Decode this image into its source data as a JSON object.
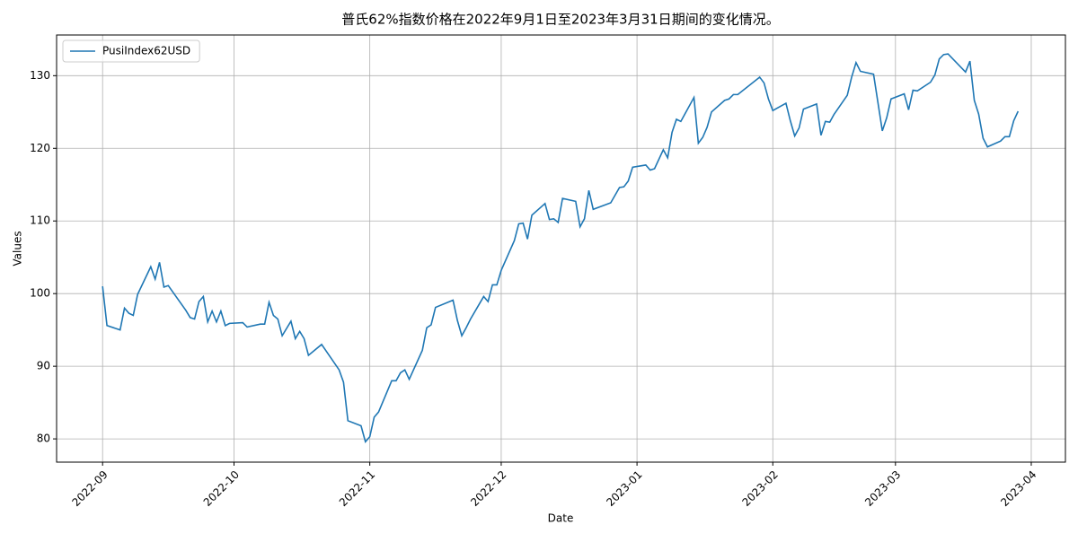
{
  "chart_data": {
    "type": "line",
    "title": "普氏62%指数价格在2022年9月1日至2023年3月31日期间的变化情况。",
    "x_label": "Date",
    "y_label": "Values",
    "x": [
      19236,
      19237,
      19240,
      19241,
      19242,
      19243,
      19244,
      19247,
      19248,
      19249,
      19250,
      19251,
      19255,
      19256,
      19257,
      19258,
      19259,
      19260,
      19261,
      19262,
      19263,
      19264,
      19265,
      19268,
      19269,
      19272,
      19273,
      19274,
      19275,
      19276,
      19277,
      19279,
      19280,
      19281,
      19282,
      19283,
      19286,
      19290,
      19291,
      19292,
      19295,
      19296,
      19297,
      19298,
      19299,
      19302,
      19303,
      19304,
      19305,
      19306,
      19309,
      19310,
      19311,
      19312,
      19316,
      19317,
      19318,
      19319,
      19320,
      19323,
      19324,
      19325,
      19326,
      19327,
      19330,
      19331,
      19332,
      19333,
      19334,
      19337,
      19338,
      19339,
      19340,
      19341,
      19344,
      19345,
      19346,
      19347,
      19348,
      19352,
      19354,
      19355,
      19356,
      19357,
      19360,
      19361,
      19362,
      19364,
      19365,
      19366,
      19367,
      19368,
      19371,
      19372,
      19373,
      19374,
      19375,
      19378,
      19379,
      19380,
      19381,
      19386,
      19387,
      19388,
      19389,
      19392,
      19393,
      19394,
      19395,
      19396,
      19399,
      19400,
      19401,
      19402,
      19403,
      19406,
      19407,
      19408,
      19409,
      19412,
      19414,
      19415,
      19416,
      19419,
      19420,
      19421,
      19422,
      19425,
      19426,
      19427,
      19428,
      19429,
      19433,
      19434,
      19435,
      19436,
      19437,
      19438,
      19441,
      19442,
      19443,
      19444,
      19445
    ],
    "series": [
      {
        "name": "PusiIndex62USD",
        "color": "#1f77b4",
        "values": [
          101.0,
          95.6,
          95.0,
          98.0,
          97.3,
          97.0,
          99.9,
          103.7,
          102.0,
          104.3,
          100.9,
          101.1,
          97.7,
          96.7,
          96.5,
          98.9,
          99.6,
          96.1,
          97.6,
          96.1,
          97.6,
          95.6,
          95.9,
          96.0,
          95.4,
          95.8,
          95.8,
          98.8,
          97.0,
          96.5,
          94.2,
          96.2,
          93.8,
          94.8,
          93.8,
          91.5,
          93.0,
          89.5,
          87.8,
          82.5,
          81.8,
          79.6,
          80.3,
          83.0,
          83.7,
          88.0,
          88.0,
          89.1,
          89.5,
          88.2,
          92.2,
          95.3,
          95.7,
          98.1,
          99.1,
          96.3,
          94.2,
          95.3,
          96.5,
          99.6,
          98.9,
          101.2,
          101.2,
          103.2,
          107.3,
          109.6,
          109.7,
          107.5,
          110.8,
          112.4,
          110.2,
          110.3,
          109.8,
          113.1,
          112.7,
          109.2,
          110.3,
          114.2,
          111.6,
          112.5,
          114.6,
          114.7,
          115.5,
          117.4,
          117.7,
          117.0,
          117.2,
          119.8,
          118.7,
          122.2,
          124.0,
          123.7,
          127.0,
          120.7,
          121.5,
          122.9,
          125.0,
          126.6,
          126.8,
          127.4,
          127.4,
          129.8,
          129.0,
          126.8,
          125.2,
          126.2,
          123.8,
          121.7,
          122.8,
          125.4,
          126.1,
          121.8,
          123.7,
          123.6,
          124.7,
          127.3,
          129.8,
          131.8,
          130.6,
          130.2,
          122.4,
          124.2,
          126.8,
          127.5,
          125.3,
          128.0,
          127.9,
          129.1,
          130.1,
          132.3,
          132.9,
          133.0,
          130.5,
          132.0,
          126.6,
          124.7,
          121.4,
          120.2,
          121.0,
          121.6,
          121.6,
          123.8,
          125.1
        ]
      }
    ],
    "xlim": [
      19225.5,
      19455.8
    ],
    "xticks": [
      {
        "value": 19236,
        "label": "2022-09"
      },
      {
        "value": 19266,
        "label": "2022-10"
      },
      {
        "value": 19297,
        "label": "2022-11"
      },
      {
        "value": 19327,
        "label": "2022-12"
      },
      {
        "value": 19358,
        "label": "2023-01"
      },
      {
        "value": 19389,
        "label": "2023-02"
      },
      {
        "value": 19417,
        "label": "2023-03"
      },
      {
        "value": 19448,
        "label": "2023-04"
      }
    ],
    "ylim": [
      76.8,
      135.6
    ],
    "yticks": [
      80,
      90,
      100,
      110,
      120,
      130
    ],
    "grid": true,
    "legend": "upper left"
  }
}
